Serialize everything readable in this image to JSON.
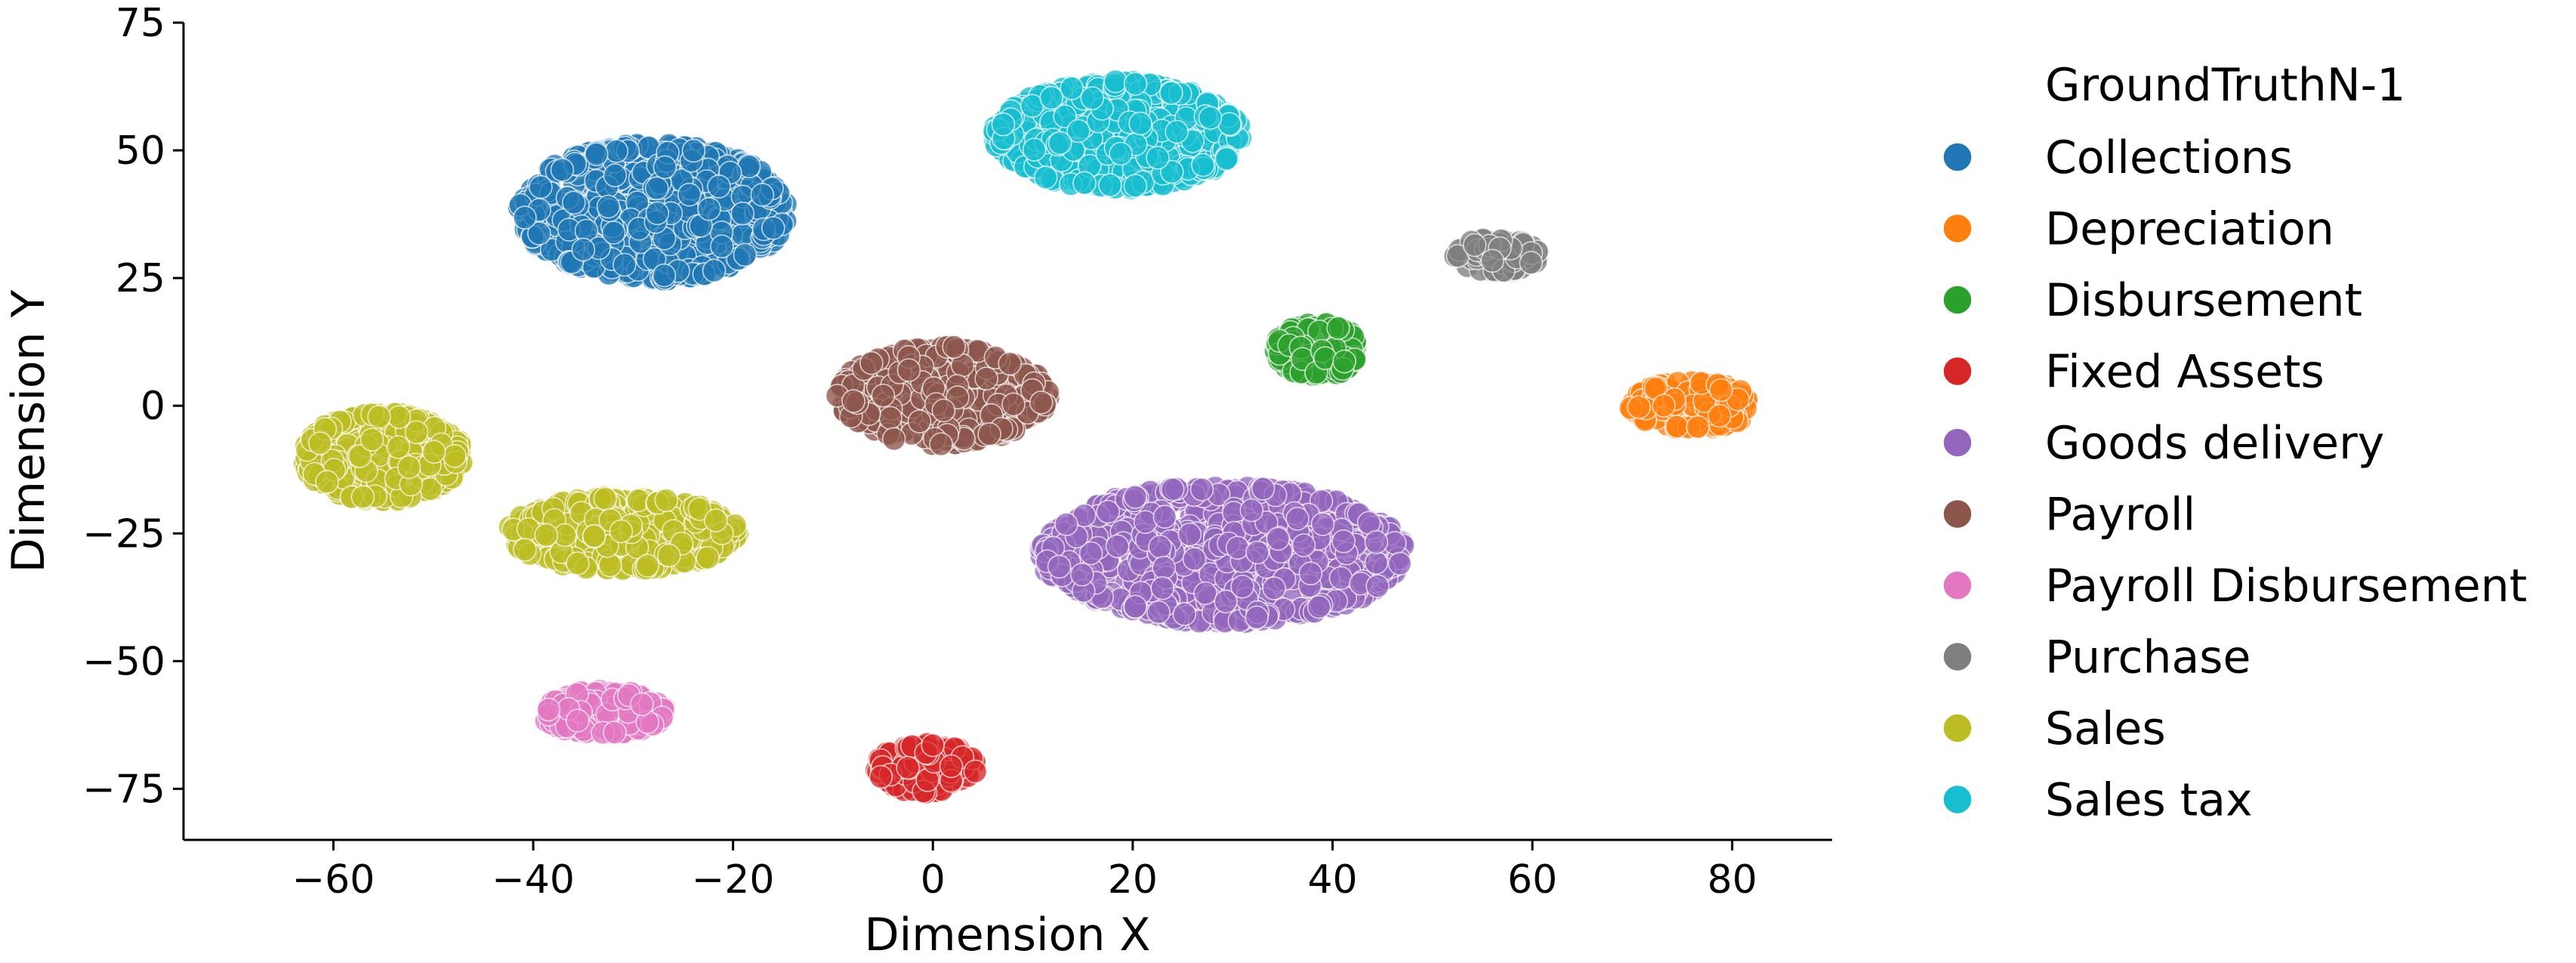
{
  "chart_data": {
    "type": "scatter",
    "title": "",
    "xlabel": "Dimension X",
    "ylabel": "Dimension Y",
    "xlim": [
      -75,
      90
    ],
    "ylim": [
      -85,
      75
    ],
    "xticks": [
      -60,
      -40,
      -20,
      0,
      20,
      40,
      60,
      80
    ],
    "yticks": [
      -75,
      -50,
      -25,
      0,
      25,
      50,
      75
    ],
    "xtick_labels": [
      "−60",
      "−40",
      "−20",
      "0",
      "20",
      "40",
      "60",
      "80"
    ],
    "ytick_labels": [
      "−75",
      "−50",
      "−25",
      "0",
      "25",
      "50",
      "75"
    ],
    "grid": false,
    "legend": {
      "title": "GroundTruthN-1",
      "placement": "right, outside plot"
    },
    "series": [
      {
        "name": "Collections",
        "color": "#1f77b4",
        "clusters": [
          {
            "cx": -28,
            "cy": 38,
            "sx": 14,
            "sy": 14,
            "count": 700
          }
        ]
      },
      {
        "name": "Depreciation",
        "color": "#ff7f0e",
        "clusters": [
          {
            "cx": 76,
            "cy": 0,
            "sx": 6.5,
            "sy": 5,
            "count": 170
          }
        ]
      },
      {
        "name": "Disbursement",
        "color": "#2ca02c",
        "clusters": [
          {
            "cx": 38.5,
            "cy": 11,
            "sx": 4.5,
            "sy": 5.5,
            "count": 150
          }
        ]
      },
      {
        "name": "Fixed Assets",
        "color": "#d62728",
        "clusters": [
          {
            "cx": -0.5,
            "cy": -71,
            "sx": 5.5,
            "sy": 5,
            "count": 150
          }
        ]
      },
      {
        "name": "Goods delivery",
        "color": "#9467bd",
        "clusters": [
          {
            "cx": 29,
            "cy": -29,
            "sx": 19,
            "sy": 14,
            "count": 850
          }
        ]
      },
      {
        "name": "Payroll",
        "color": "#8c564b",
        "clusters": [
          {
            "cx": 1,
            "cy": 2,
            "sx": 11,
            "sy": 10,
            "count": 480
          }
        ]
      },
      {
        "name": "Payroll Disbursement",
        "color": "#e377c2",
        "clusters": [
          {
            "cx": -33,
            "cy": -60,
            "sx": 6.5,
            "sy": 4.5,
            "count": 170
          }
        ]
      },
      {
        "name": "Purchase",
        "color": "#7f7f7f",
        "clusters": [
          {
            "cx": 56.5,
            "cy": 29.5,
            "sx": 4.5,
            "sy": 3.5,
            "count": 90
          }
        ]
      },
      {
        "name": "Sales",
        "color": "#bcbd22",
        "clusters": [
          {
            "cx": -55,
            "cy": -10,
            "sx": 8.5,
            "sy": 9,
            "count": 430
          },
          {
            "cx": -31,
            "cy": -25,
            "sx": 12,
            "sy": 7.5,
            "count": 430
          }
        ]
      },
      {
        "name": "Sales tax",
        "color": "#17becf",
        "clusters": [
          {
            "cx": 18.5,
            "cy": 53,
            "sx": 13,
            "sy": 11,
            "count": 560
          }
        ]
      }
    ]
  }
}
